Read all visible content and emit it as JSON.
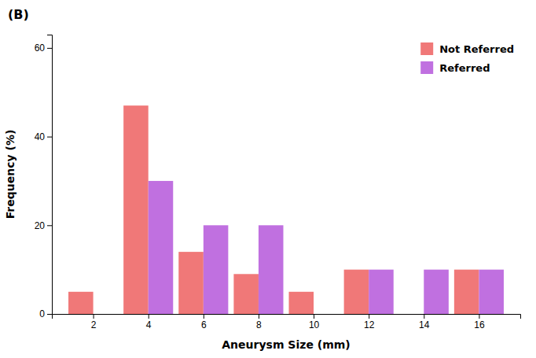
{
  "chart_data": {
    "type": "bar",
    "annotations": [
      "(B)"
    ],
    "xlabel": "Aneurysm Size (mm)",
    "ylabel": "Frequency (%)",
    "x": [
      2,
      4,
      6,
      8,
      10,
      12,
      14,
      16
    ],
    "series": [
      {
        "name": "Not Referred",
        "color": "#F07878",
        "values": [
          5,
          47,
          14,
          9,
          5,
          10,
          0,
          10
        ]
      },
      {
        "name": "Referred",
        "color": "#C070E0",
        "values": [
          0,
          30,
          20,
          20,
          0,
          10,
          10,
          10
        ]
      }
    ],
    "xlim": [
      0.5,
      17.5
    ],
    "xticks": [
      2,
      4,
      6,
      8,
      10,
      12,
      14,
      16
    ],
    "ylim": [
      0,
      63
    ],
    "yticks": [
      0,
      20,
      40,
      60
    ],
    "grid": false,
    "legend": "upper right"
  }
}
